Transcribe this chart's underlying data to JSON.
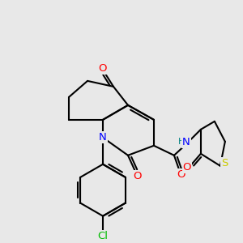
{
  "background_color": "#e8e8e8",
  "atoms": {
    "C": "#000000",
    "N": "#0000ff",
    "O": "#ff0000",
    "S": "#cccc00",
    "Cl": "#00bb00",
    "H": "#008080"
  },
  "bond_color": "#000000",
  "bond_width": 1.5,
  "figsize": [
    3.0,
    3.0
  ],
  "dpi": 100,
  "xlim": [
    0,
    300
  ],
  "ylim": [
    0,
    300
  ]
}
